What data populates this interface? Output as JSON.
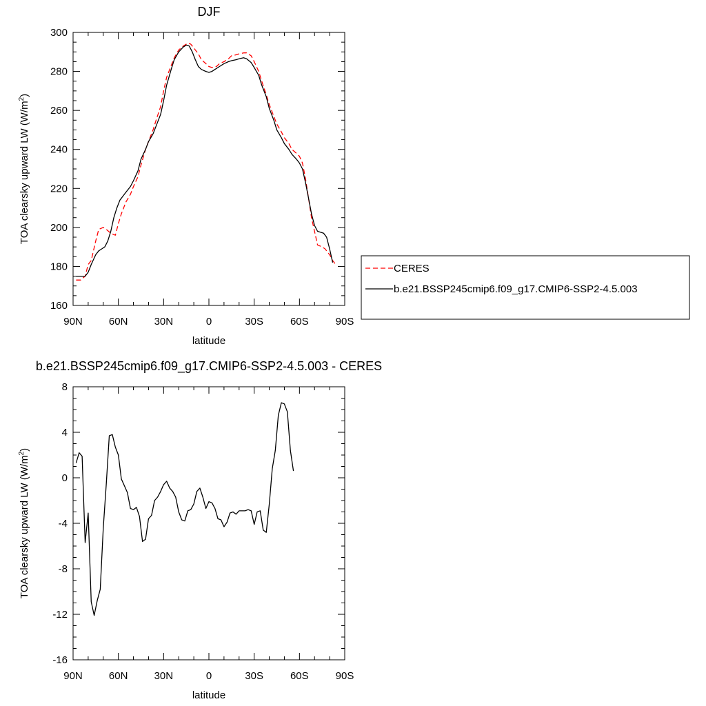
{
  "chart_data": [
    {
      "type": "line",
      "title": "DJF",
      "xlabel": "latitude",
      "ylabel": "TOA clearsky upward LW (W/m²)",
      "ylim": [
        160,
        300
      ],
      "yticks": [
        160,
        180,
        200,
        220,
        240,
        260,
        280,
        300
      ],
      "xlim": [
        -90,
        90
      ],
      "xticks": [
        -90,
        -60,
        -30,
        0,
        30,
        60,
        90
      ],
      "xtick_labels": [
        "90N",
        "60N",
        "30N",
        "0",
        "30S",
        "60S",
        "90S"
      ],
      "legend": {
        "placement": "right",
        "entries": [
          "CERES",
          "b.e21.BSSP245cmip6.f09_g17.CMIP6-SSP2-4.5.003"
        ]
      },
      "series": [
        {
          "name": "CERES",
          "color": "#ff0000",
          "dash": true,
          "points": [
            [
              -88,
              173
            ],
            [
              -85,
              173
            ],
            [
              -82,
              175
            ],
            [
              -80,
              181
            ],
            [
              -78,
              183
            ],
            [
              -75,
              193
            ],
            [
              -73,
              199
            ],
            [
              -70,
              200
            ],
            [
              -68,
              199
            ],
            [
              -65,
              197
            ],
            [
              -62,
              196
            ],
            [
              -60,
              202
            ],
            [
              -58,
              207
            ],
            [
              -55,
              213
            ],
            [
              -52,
              217
            ],
            [
              -50,
              221
            ],
            [
              -47,
              226
            ],
            [
              -45,
              232
            ],
            [
              -42,
              240
            ],
            [
              -40,
              244
            ],
            [
              -37,
              250
            ],
            [
              -35,
              255
            ],
            [
              -32,
              262
            ],
            [
              -30,
              270
            ],
            [
              -28,
              277
            ],
            [
              -25,
              283
            ],
            [
              -23,
              287
            ],
            [
              -20,
              291
            ],
            [
              -17,
              293
            ],
            [
              -14,
              294.5
            ],
            [
              -12,
              294
            ],
            [
              -10,
              292
            ],
            [
              -7,
              289
            ],
            [
              -5,
              286
            ],
            [
              -2,
              284
            ],
            [
              0,
              282.5
            ],
            [
              2,
              282
            ],
            [
              5,
              282.5
            ],
            [
              7,
              284
            ],
            [
              10,
              285
            ],
            [
              13,
              286.5
            ],
            [
              15,
              288
            ],
            [
              18,
              288.5
            ],
            [
              20,
              289
            ],
            [
              23,
              289.5
            ],
            [
              25,
              289.5
            ],
            [
              28,
              288
            ],
            [
              30,
              285
            ],
            [
              33,
              280
            ],
            [
              35,
              275
            ],
            [
              38,
              268
            ],
            [
              40,
              263
            ],
            [
              43,
              257
            ],
            [
              45,
              253
            ],
            [
              48,
              249
            ],
            [
              50,
              246
            ],
            [
              53,
              243
            ],
            [
              55,
              240
            ],
            [
              58,
              238
            ],
            [
              60,
              236.5
            ],
            [
              62,
              233
            ],
            [
              64,
              225
            ],
            [
              66,
              215
            ],
            [
              68,
              205
            ],
            [
              70,
              198
            ],
            [
              72,
              191
            ],
            [
              75,
              190
            ],
            [
              77,
              189
            ],
            [
              80,
              186
            ],
            [
              82,
              183
            ],
            [
              84,
              181
            ]
          ]
        },
        {
          "name": "b.e21.BSSP245cmip6.f09_g17.CMIP6-SSP2-4.5.003",
          "color": "#000000",
          "dash": false,
          "points": [
            [
              -88,
              175
            ],
            [
              -85,
              175
            ],
            [
              -82,
              175
            ],
            [
              -80,
              177
            ],
            [
              -78,
              181
            ],
            [
              -75,
              186
            ],
            [
              -73,
              188
            ],
            [
              -71,
              189
            ],
            [
              -69,
              190
            ],
            [
              -67,
              193
            ],
            [
              -65,
              198
            ],
            [
              -63,
              205
            ],
            [
              -61,
              210
            ],
            [
              -59,
              214
            ],
            [
              -57,
              216
            ],
            [
              -55,
              218
            ],
            [
              -52,
              221
            ],
            [
              -50,
              224
            ],
            [
              -47,
              229
            ],
            [
              -45,
              235
            ],
            [
              -42,
              240
            ],
            [
              -40,
              244
            ],
            [
              -37,
              248
            ],
            [
              -35,
              252
            ],
            [
              -32,
              258
            ],
            [
              -30,
              265
            ],
            [
              -28,
              273
            ],
            [
              -25,
              281
            ],
            [
              -23,
              286
            ],
            [
              -20,
              290
            ],
            [
              -17,
              292.5
            ],
            [
              -15,
              293.5
            ],
            [
              -13,
              293
            ],
            [
              -11,
              290
            ],
            [
              -9,
              286
            ],
            [
              -7,
              282.5
            ],
            [
              -5,
              281
            ],
            [
              -2,
              280
            ],
            [
              0,
              279.5
            ],
            [
              2,
              280
            ],
            [
              4,
              281
            ],
            [
              7,
              282.5
            ],
            [
              10,
              284
            ],
            [
              13,
              285
            ],
            [
              15,
              285.5
            ],
            [
              18,
              286
            ],
            [
              20,
              286.5
            ],
            [
              23,
              287
            ],
            [
              25,
              286.5
            ],
            [
              28,
              284.5
            ],
            [
              30,
              282
            ],
            [
              33,
              278
            ],
            [
              35,
              273
            ],
            [
              38,
              267
            ],
            [
              40,
              261
            ],
            [
              43,
              255
            ],
            [
              45,
              250
            ],
            [
              48,
              246
            ],
            [
              50,
              243
            ],
            [
              53,
              240
            ],
            [
              55,
              237.5
            ],
            [
              58,
              235
            ],
            [
              60,
              233
            ],
            [
              62,
              230
            ],
            [
              64,
              223
            ],
            [
              66,
              215
            ],
            [
              68,
              207
            ],
            [
              70,
              201
            ],
            [
              72,
              198
            ],
            [
              74,
              197.5
            ],
            [
              76,
              197
            ],
            [
              78,
              195
            ],
            [
              80,
              189
            ],
            [
              82,
              182
            ]
          ]
        }
      ]
    },
    {
      "type": "line",
      "title": "b.e21.BSSP245cmip6.f09_g17.CMIP6-SSP2-4.5.003 - CERES",
      "xlabel": "latitude",
      "ylabel": "TOA clearsky upward LW (W/m²)",
      "ylim": [
        -16,
        8
      ],
      "yticks": [
        -16,
        -12,
        -8,
        -4,
        0,
        4,
        8
      ],
      "xlim": [
        -90,
        90
      ],
      "xticks": [
        -90,
        -60,
        -30,
        0,
        30,
        60,
        90
      ],
      "xtick_labels": [
        "90N",
        "60N",
        "30N",
        "0",
        "30S",
        "60S",
        "90S"
      ],
      "series": [
        {
          "color": "#000000",
          "points": [
            [
              -88,
              1.3
            ],
            [
              -86,
              2.2
            ],
            [
              -84,
              1.9
            ],
            [
              -82,
              -5.7
            ],
            [
              -80,
              -3.1
            ],
            [
              -78,
              -10.9
            ],
            [
              -76,
              -12.1
            ],
            [
              -74,
              -10.8
            ],
            [
              -72,
              -9.8
            ],
            [
              -70,
              -4.4
            ],
            [
              -68,
              -0.5
            ],
            [
              -66,
              3.7
            ],
            [
              -64,
              3.8
            ],
            [
              -62,
              2.7
            ],
            [
              -60,
              2.0
            ],
            [
              -58,
              -0.1
            ],
            [
              -56,
              -0.7
            ],
            [
              -54,
              -1.3
            ],
            [
              -52,
              -2.7
            ],
            [
              -50,
              -2.8
            ],
            [
              -48,
              -2.6
            ],
            [
              -46,
              -3.4
            ],
            [
              -44,
              -5.6
            ],
            [
              -42,
              -5.4
            ],
            [
              -40,
              -3.6
            ],
            [
              -38,
              -3.3
            ],
            [
              -36,
              -2.0
            ],
            [
              -34,
              -1.7
            ],
            [
              -32,
              -1.2
            ],
            [
              -30,
              -0.6
            ],
            [
              -28,
              -0.3
            ],
            [
              -26,
              -0.9
            ],
            [
              -24,
              -1.2
            ],
            [
              -22,
              -1.7
            ],
            [
              -20,
              -3.0
            ],
            [
              -18,
              -3.7
            ],
            [
              -16,
              -3.8
            ],
            [
              -14,
              -2.9
            ],
            [
              -12,
              -2.8
            ],
            [
              -10,
              -2.3
            ],
            [
              -8,
              -1.2
            ],
            [
              -6,
              -0.9
            ],
            [
              -4,
              -1.7
            ],
            [
              -2,
              -2.7
            ],
            [
              0,
              -2.1
            ],
            [
              2,
              -2.2
            ],
            [
              4,
              -2.7
            ],
            [
              6,
              -3.6
            ],
            [
              8,
              -3.7
            ],
            [
              10,
              -4.3
            ],
            [
              12,
              -3.9
            ],
            [
              14,
              -3.1
            ],
            [
              16,
              -3.0
            ],
            [
              18,
              -3.2
            ],
            [
              20,
              -2.9
            ],
            [
              22,
              -2.9
            ],
            [
              24,
              -2.9
            ],
            [
              26,
              -2.8
            ],
            [
              28,
              -2.9
            ],
            [
              30,
              -4.1
            ],
            [
              32,
              -3.0
            ],
            [
              34,
              -2.9
            ],
            [
              36,
              -4.6
            ],
            [
              38,
              -4.8
            ],
            [
              40,
              -2.3
            ],
            [
              42,
              0.8
            ],
            [
              44,
              2.4
            ],
            [
              46,
              5.5
            ],
            [
              48,
              6.6
            ],
            [
              50,
              6.5
            ],
            [
              52,
              5.8
            ],
            [
              54,
              2.4
            ],
            [
              56,
              0.6
            ]
          ]
        }
      ]
    }
  ]
}
